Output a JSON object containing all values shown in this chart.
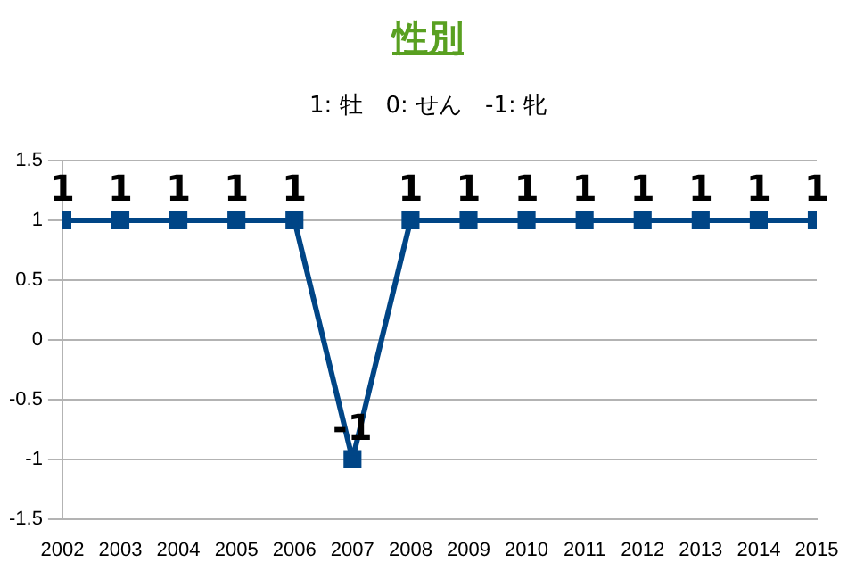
{
  "chart_data": {
    "type": "line",
    "title": "性別",
    "subtitle": "1: 牡　0: せん　-1: 牝",
    "x": [
      2002,
      2003,
      2004,
      2005,
      2006,
      2007,
      2008,
      2009,
      2010,
      2011,
      2012,
      2013,
      2014,
      2015
    ],
    "series": [
      {
        "color": "#004586",
        "values": [
          1,
          1,
          1,
          1,
          1,
          -1,
          1,
          1,
          1,
          1,
          1,
          1,
          1,
          1
        ]
      }
    ],
    "xlim": [
      2002,
      2015
    ],
    "xticks": [
      2002,
      2003,
      2004,
      2005,
      2006,
      2007,
      2008,
      2009,
      2010,
      2011,
      2012,
      2013,
      2014,
      2015
    ],
    "ylim": [
      -1.5,
      1.5
    ],
    "yticks": [
      -1.5,
      -1,
      -0.5,
      0,
      0.5,
      1,
      1.5
    ],
    "grid": "y",
    "legend": false,
    "marker": "square",
    "line_style": "solid",
    "data_labels": true
  }
}
